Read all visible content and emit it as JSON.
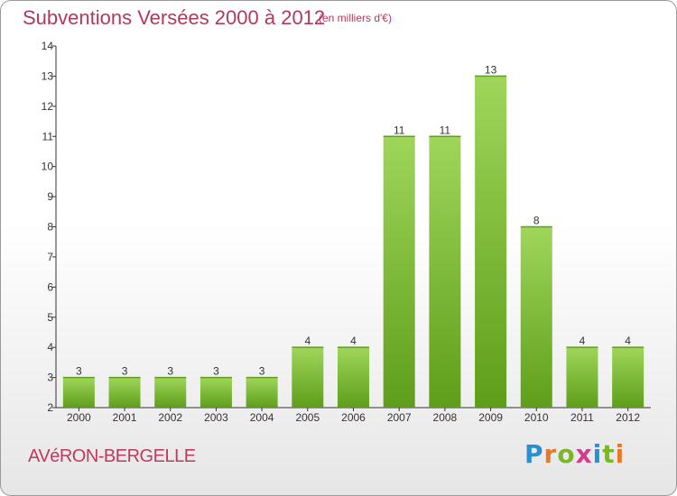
{
  "header": {
    "title": "Subventions Versées 2000 à 2012",
    "subtitle": "(en milliers d'€)"
  },
  "footer": {
    "commune": "AVéRON-BERGELLE",
    "logo": {
      "text": "Proxiti",
      "letter_colors": [
        "#2a8fd0",
        "#e9792a",
        "#7ab52a",
        "#d63c8c",
        "#2a8fd0",
        "#7ab52a",
        "#e9792a"
      ]
    }
  },
  "colors": {
    "title": "#b03a5b",
    "bar_light": "#9fd65a",
    "bar_dark": "#5e9e1a",
    "axis": "#333333"
  },
  "chart_data": {
    "type": "bar",
    "categories": [
      "2000",
      "2001",
      "2002",
      "2003",
      "2004",
      "2005",
      "2006",
      "2007",
      "2008",
      "2009",
      "2010",
      "2011",
      "2012"
    ],
    "values": [
      3,
      3,
      3,
      3,
      3,
      4,
      4,
      11,
      11,
      13,
      8,
      4,
      4
    ],
    "ylim": [
      2,
      14
    ],
    "yticks": [
      2,
      3,
      4,
      5,
      6,
      7,
      8,
      9,
      10,
      11,
      12,
      13,
      14
    ],
    "title": "Subventions Versées 2000 à 2012",
    "xlabel": "",
    "ylabel": "",
    "grid": false,
    "legend": "none"
  }
}
